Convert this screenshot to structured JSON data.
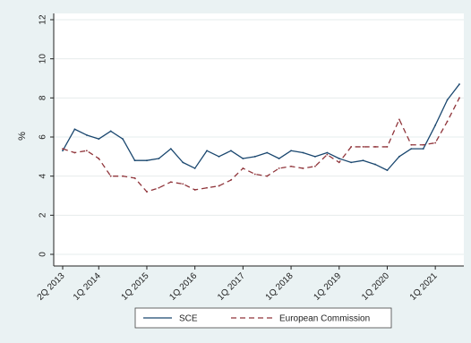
{
  "chart_data": {
    "type": "line",
    "title": "",
    "xlabel": "",
    "ylabel": "%",
    "ylim": [
      0,
      12
    ],
    "yticks": [
      0,
      2,
      4,
      6,
      8,
      10,
      12
    ],
    "grid": "horizontal",
    "legend_position": "bottom",
    "x": [
      "2Q 2013",
      "3Q 2013",
      "4Q 2013",
      "1Q 2014",
      "2Q 2014",
      "3Q 2014",
      "4Q 2014",
      "1Q 2015",
      "2Q 2015",
      "3Q 2015",
      "4Q 2015",
      "1Q 2016",
      "2Q 2016",
      "3Q 2016",
      "4Q 2016",
      "1Q 2017",
      "2Q 2017",
      "3Q 2017",
      "4Q 2017",
      "1Q 2018",
      "2Q 2018",
      "3Q 2018",
      "4Q 2018",
      "1Q 2019",
      "2Q 2019",
      "3Q 2019",
      "4Q 2019",
      "1Q 2020",
      "2Q 2020",
      "3Q 2020",
      "4Q 2020",
      "1Q 2021",
      "2Q 2021",
      "3Q 2021"
    ],
    "x_tick_labels": [
      "2Q 2013",
      "1Q 2014",
      "1Q 2015",
      "1Q 2016",
      "1Q 2017",
      "1Q 2018",
      "1Q 2019",
      "1Q 2020",
      "1Q 2021"
    ],
    "series": [
      {
        "name": "SCE",
        "color": "#1a476f",
        "dash": "solid",
        "values": [
          5.3,
          6.4,
          6.1,
          5.9,
          6.3,
          5.9,
          4.8,
          4.8,
          4.9,
          5.4,
          4.7,
          4.4,
          5.3,
          5.0,
          5.3,
          4.9,
          5.0,
          5.2,
          4.9,
          5.3,
          5.2,
          5.0,
          5.2,
          4.9,
          4.7,
          4.8,
          4.6,
          4.3,
          5.0,
          5.4,
          5.4,
          6.6,
          7.9,
          8.7
        ]
      },
      {
        "name": "European Commission",
        "color": "#90353b",
        "dash": "dashed",
        "values": [
          5.4,
          5.2,
          5.3,
          4.9,
          4.0,
          4.0,
          3.9,
          3.2,
          3.4,
          3.7,
          3.6,
          3.3,
          3.4,
          3.5,
          3.8,
          4.4,
          4.1,
          4.0,
          4.4,
          4.5,
          4.4,
          4.5,
          5.1,
          4.7,
          5.5,
          5.5,
          5.5,
          5.5,
          6.9,
          5.6,
          5.6,
          5.7,
          6.8,
          8.0
        ]
      }
    ]
  }
}
